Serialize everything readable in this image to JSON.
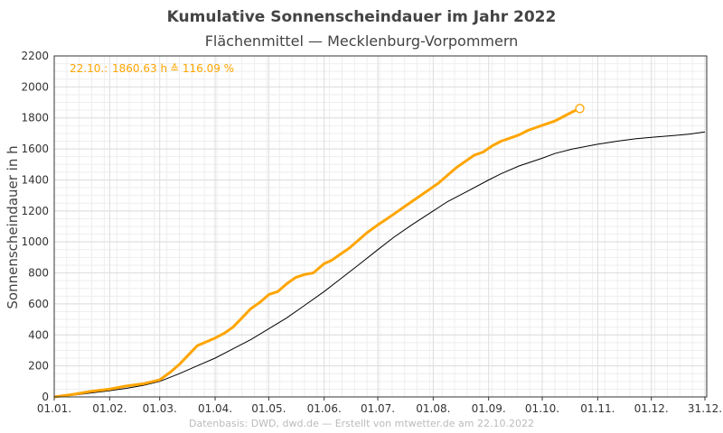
{
  "chart_data": {
    "type": "line",
    "title": "Kumulative Sonnenscheindauer im Jahr 2022",
    "subtitle": "Flächenmittel — Mecklenburg-Vorpommern",
    "ylabel": "Sonnenscheindauer in h",
    "xlabel": "",
    "x_ticks": [
      "01.01.",
      "01.02.",
      "01.03.",
      "01.04.",
      "01.05.",
      "01.06.",
      "01.07.",
      "01.08.",
      "01.09.",
      "01.10.",
      "01.11.",
      "01.12.",
      "31.12."
    ],
    "x_tick_days": [
      0,
      31,
      59,
      90,
      120,
      151,
      181,
      212,
      243,
      273,
      304,
      334,
      364
    ],
    "xlim": [
      0,
      365
    ],
    "ylim": [
      0,
      2200
    ],
    "y_ticks": [
      0,
      200,
      400,
      600,
      800,
      1000,
      1200,
      1400,
      1600,
      1800,
      2000,
      2200
    ],
    "grid": true,
    "annotation": {
      "date": "22.10.:",
      "hours": "1860.63 h",
      "percent": "≙ 116.09 %"
    },
    "colors": {
      "current": "#ffa500",
      "reference": "#000000",
      "grid": "#dddddd",
      "frame": "#333333"
    },
    "series": [
      {
        "x": [
          0,
          10,
          20,
          31,
          40,
          50,
          59,
          65,
          70,
          75,
          80,
          90,
          95,
          100,
          105,
          110,
          115,
          120,
          125,
          130,
          135,
          140,
          145,
          151,
          155,
          160,
          165,
          170,
          175,
          181,
          185,
          190,
          195,
          200,
          205,
          210,
          215,
          220,
          225,
          230,
          235,
          240,
          245,
          250,
          255,
          260,
          265,
          270,
          275,
          280,
          285,
          290,
          294
        ],
        "y": [
          0,
          15,
          35,
          50,
          70,
          85,
          110,
          160,
          210,
          270,
          330,
          380,
          410,
          450,
          510,
          570,
          610,
          660,
          680,
          730,
          770,
          790,
          800,
          860,
          880,
          920,
          960,
          1010,
          1060,
          1110,
          1140,
          1180,
          1220,
          1260,
          1300,
          1340,
          1380,
          1430,
          1480,
          1520,
          1560,
          1580,
          1620,
          1650,
          1670,
          1690,
          1720,
          1740,
          1760,
          1780,
          1810,
          1840,
          1860.63
        ]
      },
      {
        "x": [
          0,
          10,
          20,
          31,
          40,
          50,
          59,
          70,
          80,
          90,
          100,
          110,
          120,
          130,
          140,
          151,
          160,
          170,
          181,
          190,
          200,
          212,
          220,
          230,
          243,
          250,
          260,
          273,
          280,
          290,
          304,
          315,
          325,
          334,
          345,
          355,
          364
        ],
        "y": [
          0,
          10,
          25,
          40,
          55,
          75,
          100,
          150,
          200,
          250,
          310,
          370,
          440,
          510,
          590,
          680,
          760,
          850,
          950,
          1030,
          1110,
          1200,
          1260,
          1320,
          1400,
          1440,
          1490,
          1540,
          1570,
          1600,
          1630,
          1650,
          1665,
          1675,
          1685,
          1695,
          1710
        ]
      }
    ]
  },
  "footer": "Datenbasis: DWD, dwd.de — Erstellt von mtwetter.de am 22.10.2022"
}
